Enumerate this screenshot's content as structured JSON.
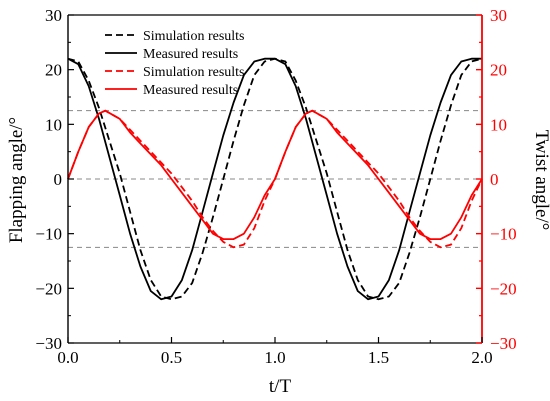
{
  "chart_data": {
    "type": "line",
    "xlabel": "t/T",
    "ylabel_left": "Flapping angle/°",
    "ylabel_right": "Twist angle/°",
    "xlim": [
      0,
      2
    ],
    "ylim_left": [
      -30,
      30
    ],
    "ylim_right": [
      -30,
      30
    ],
    "x_ticks": [
      "0.0",
      "0.5",
      "1.0",
      "1.5",
      "2.0"
    ],
    "y_ticks_left": [
      "30",
      "20",
      "10",
      "0",
      "−10",
      "−20",
      "−30"
    ],
    "y_ticks_right": [
      "30",
      "20",
      "10",
      "0",
      "−10",
      "−20",
      "−30"
    ],
    "reference_lines_y": [
      12.5,
      0,
      -12.5
    ],
    "colors": {
      "left_axis": "#000000",
      "right_axis": "#ff0000",
      "reference": "#888888"
    },
    "legend_position": "top-left",
    "series": [
      {
        "name": "Simulation results",
        "axis": "left",
        "color": "#000000",
        "dash": "dashed",
        "x": [
          0,
          0.05,
          0.1,
          0.15,
          0.2,
          0.25,
          0.3,
          0.35,
          0.4,
          0.45,
          0.5,
          0.55,
          0.6,
          0.65,
          0.7,
          0.75,
          0.8,
          0.85,
          0.9,
          0.95,
          1.0,
          1.05,
          1.1,
          1.15,
          1.2,
          1.25,
          1.3,
          1.35,
          1.4,
          1.45,
          1.5,
          1.55,
          1.6,
          1.65,
          1.7,
          1.75,
          1.8,
          1.85,
          1.9,
          1.95,
          2.0
        ],
        "y": [
          22,
          21.5,
          18,
          13,
          7,
          1,
          -6,
          -13,
          -18.5,
          -21.5,
          -22,
          -21.5,
          -19,
          -13.5,
          -7,
          0,
          7,
          13.5,
          19,
          21.5,
          22,
          21.5,
          18,
          13,
          7,
          1,
          -6,
          -13,
          -18.5,
          -21.5,
          -22,
          -21.5,
          -19,
          -13.5,
          -7,
          0,
          7,
          13.5,
          19,
          21.5,
          22
        ]
      },
      {
        "name": "Measured results",
        "axis": "left",
        "color": "#000000",
        "dash": "solid",
        "x": [
          0,
          0.05,
          0.1,
          0.15,
          0.2,
          0.25,
          0.3,
          0.35,
          0.4,
          0.45,
          0.5,
          0.55,
          0.6,
          0.65,
          0.7,
          0.75,
          0.8,
          0.85,
          0.9,
          0.95,
          1.0,
          1.05,
          1.1,
          1.15,
          1.2,
          1.25,
          1.3,
          1.35,
          1.4,
          1.45,
          1.5,
          1.55,
          1.6,
          1.65,
          1.7,
          1.75,
          1.8,
          1.85,
          1.9,
          1.95,
          2.0
        ],
        "y": [
          22,
          21,
          17,
          11,
          4,
          -3,
          -10,
          -16,
          -20.5,
          -22,
          -21.5,
          -18.5,
          -13,
          -6,
          1,
          8,
          14,
          19,
          21.5,
          22,
          22,
          21,
          17,
          11,
          4,
          -3,
          -10,
          -16,
          -20.5,
          -22,
          -21.5,
          -18.5,
          -13,
          -6,
          1,
          8,
          14,
          19,
          21.5,
          22,
          22
        ]
      },
      {
        "name": "Simulation results",
        "axis": "right",
        "color": "#ff0000",
        "dash": "dashed",
        "x": [
          0,
          0.05,
          0.1,
          0.15,
          0.18,
          0.25,
          0.3,
          0.35,
          0.4,
          0.45,
          0.5,
          0.55,
          0.6,
          0.65,
          0.7,
          0.75,
          0.8,
          0.85,
          0.9,
          0.95,
          1.0,
          1.05,
          1.1,
          1.15,
          1.18,
          1.25,
          1.3,
          1.35,
          1.4,
          1.45,
          1.5,
          1.55,
          1.6,
          1.65,
          1.7,
          1.75,
          1.8,
          1.85,
          1.9,
          1.95,
          2.0
        ],
        "y": [
          0,
          5,
          9.5,
          12,
          12.5,
          11,
          9,
          7,
          5,
          3,
          1,
          -1.5,
          -4,
          -7,
          -9.5,
          -11.5,
          -12.5,
          -12,
          -9,
          -4,
          0,
          5,
          9.5,
          12,
          12.5,
          11,
          9,
          7,
          5,
          3,
          1,
          -1.5,
          -4,
          -7,
          -9.5,
          -11.5,
          -12.5,
          -12,
          -9,
          -4,
          0
        ]
      },
      {
        "name": "Measured results",
        "axis": "right",
        "color": "#ff0000",
        "dash": "solid",
        "x": [
          0,
          0.05,
          0.1,
          0.15,
          0.18,
          0.25,
          0.3,
          0.35,
          0.4,
          0.45,
          0.5,
          0.55,
          0.6,
          0.65,
          0.7,
          0.75,
          0.8,
          0.85,
          0.9,
          0.95,
          1.0,
          1.05,
          1.1,
          1.15,
          1.18,
          1.25,
          1.3,
          1.35,
          1.4,
          1.45,
          1.5,
          1.55,
          1.6,
          1.65,
          1.7,
          1.75,
          1.8,
          1.85,
          1.9,
          1.95,
          2.0
        ],
        "y": [
          0,
          5,
          9.5,
          12,
          12.5,
          11,
          8.5,
          6.5,
          4.5,
          2.5,
          0,
          -2.5,
          -5,
          -7.5,
          -10,
          -11,
          -11,
          -10,
          -7,
          -3,
          0,
          5,
          9.5,
          12,
          12.5,
          11,
          8.5,
          6.5,
          4.5,
          2.5,
          0,
          -2.5,
          -5,
          -7.5,
          -10,
          -11,
          -11,
          -10,
          -7,
          -3,
          0
        ]
      }
    ]
  }
}
